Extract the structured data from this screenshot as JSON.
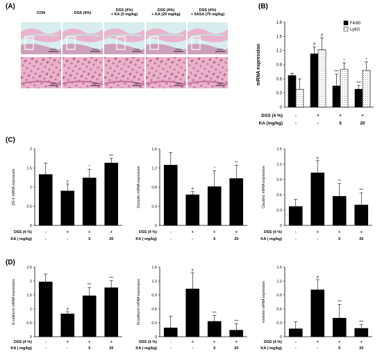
{
  "panel_labels": {
    "a": "(A)",
    "b": "(B)",
    "c": "(C)",
    "d": "(D)"
  },
  "histology": {
    "groups": [
      {
        "lines": [
          "CON"
        ]
      },
      {
        "lines": [
          "DSS (4%)"
        ]
      },
      {
        "lines": [
          "DSS (4%)",
          "+ KA (5 mg/kg)"
        ]
      },
      {
        "lines": [
          "DSS (4%)",
          "+ KA (20 mg/kg)"
        ]
      },
      {
        "lines": [
          "DSS (4%)",
          "+ 5ASA (75 mg/kg)"
        ]
      }
    ],
    "top_scale": "2mm",
    "bottom_scale": "1mm",
    "colors": {
      "tissue": "#e9b3cb",
      "tissue_dark": "#c66d9a",
      "cell": "#b0457a",
      "lumen": "#bfe4e4",
      "background": "#d8eeee",
      "box": "#ffffff",
      "scale": "#222222"
    }
  },
  "conditions": {
    "dss_label": "DSS (4 %)",
    "ka_label_b": "KA (mg/kg)",
    "ka_label_cd": "KA ( mg/kg)",
    "dss": [
      "-",
      "+",
      "+",
      "+"
    ],
    "ka": [
      "-",
      "-",
      "5",
      "20"
    ]
  },
  "chart_data": [
    {
      "id": "b",
      "type": "bar",
      "ylabel": "mRNA expression",
      "ylim": [
        0,
        1.8
      ],
      "yticks": [
        "0",
        "0.3",
        "0.6",
        "0.9",
        "1.2",
        "1.5",
        "1.8"
      ],
      "series": [
        {
          "name": "F4/80",
          "values": [
            0.67,
            1.13,
            0.45,
            0.38
          ],
          "errors": [
            0.05,
            0.15,
            0.25,
            0.08
          ],
          "fill": "#000000"
        },
        {
          "name": "Ly6G",
          "values": [
            0.38,
            1.22,
            0.8,
            0.78
          ],
          "errors": [
            0.22,
            0.25,
            0.14,
            0.18
          ],
          "fill": "dots"
        }
      ],
      "annotations": [
        [
          "",
          ""
        ],
        [
          "#",
          "#"
        ],
        [
          "***",
          "*"
        ],
        [
          "***",
          "*"
        ]
      ],
      "legend": "top-right"
    },
    {
      "id": "c1",
      "type": "bar",
      "ylabel": "ZO-1 mRNA expression",
      "ylim": [
        0,
        2
      ],
      "yticks": [
        "0",
        "0.5",
        "1",
        "1.5",
        "2"
      ],
      "values": [
        1.33,
        0.9,
        1.24,
        1.63
      ],
      "errors": [
        0.3,
        0.18,
        0.23,
        0.12
      ],
      "annotations": [
        "",
        "#",
        "*",
        "***"
      ]
    },
    {
      "id": "c2",
      "type": "bar",
      "ylabel": "Occludin mRNA expression",
      "ylim": [
        0,
        1.6
      ],
      "yticks": [
        "0",
        "0.4",
        "0.8",
        "1.2",
        "1.6"
      ],
      "values": [
        1.26,
        0.64,
        0.81,
        0.98
      ],
      "errors": [
        0.26,
        0.07,
        0.33,
        0.28
      ],
      "annotations": [
        "",
        "#",
        "*",
        "**"
      ]
    },
    {
      "id": "c3",
      "type": "bar",
      "ylabel": "Claudin1 mRNA expression",
      "ylim": [
        0,
        1.5
      ],
      "yticks": [
        "0",
        "0.3",
        "0.6",
        "0.9",
        "1.2",
        "1.5"
      ],
      "values": [
        0.37,
        1.03,
        0.57,
        0.4
      ],
      "errors": [
        0.14,
        0.24,
        0.25,
        0.24
      ],
      "annotations": [
        "",
        "#",
        "**",
        "***"
      ]
    },
    {
      "id": "d1",
      "type": "bar",
      "ylabel": "E-cadherin mRNA expression",
      "ylim": [
        0,
        2.5
      ],
      "yticks": [
        "0",
        "0.5",
        "1",
        "1.5",
        "2",
        "2.5"
      ],
      "values": [
        1.97,
        0.82,
        1.47,
        1.76
      ],
      "errors": [
        0.28,
        0.08,
        0.3,
        0.25
      ],
      "annotations": [
        "",
        "#",
        "***",
        "***"
      ]
    },
    {
      "id": "d2",
      "type": "bar",
      "ylabel": "N-cadherin mRNA expression",
      "ylim": [
        0,
        1.5
      ],
      "yticks": [
        "0",
        "0.3",
        "0.6",
        "0.9",
        "1.2",
        "1.5"
      ],
      "values": [
        0.19,
        1.03,
        0.33,
        0.14
      ],
      "errors": [
        0.25,
        0.35,
        0.13,
        0.14
      ],
      "annotations": [
        "",
        "#",
        "***",
        "***"
      ]
    },
    {
      "id": "d3",
      "type": "bar",
      "ylabel": "vimentin mRNA expression",
      "ylim": [
        0,
        1.5
      ],
      "yticks": [
        "0",
        "0.3",
        "0.6",
        "0.9",
        "1.2",
        "1.5"
      ],
      "values": [
        0.17,
        1.01,
        0.4,
        0.18
      ],
      "errors": [
        0.15,
        0.22,
        0.3,
        0.08
      ],
      "annotations": [
        "",
        "#",
        "***",
        "***"
      ]
    }
  ]
}
